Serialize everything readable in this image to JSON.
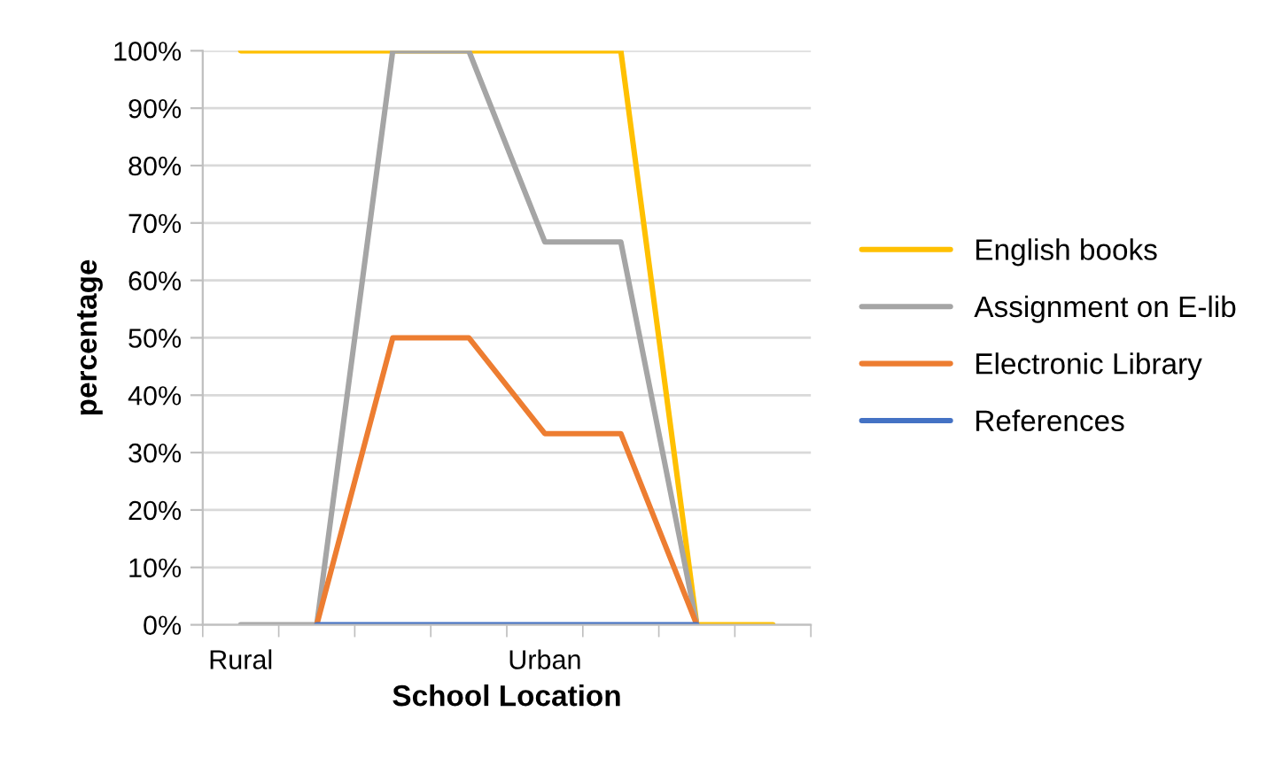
{
  "chart_data": {
    "type": "line",
    "xlabel": "School Location",
    "ylabel": "percentage",
    "categories": [
      "Rural",
      null,
      null,
      null,
      "Urban",
      null,
      null,
      null
    ],
    "series": [
      {
        "name": "English books",
        "color": "#ffc000",
        "values": [
          100,
          100,
          100,
          100,
          100,
          100,
          0,
          0
        ]
      },
      {
        "name": "Assignment on E-lib",
        "color": "#a5a5a5",
        "values": [
          0,
          0,
          100,
          100,
          66.7,
          66.7,
          0,
          null
        ]
      },
      {
        "name": "Electronic Library",
        "color": "#ed7d31",
        "values": [
          null,
          0,
          50,
          50,
          33.3,
          33.3,
          0,
          null
        ]
      },
      {
        "name": "References",
        "color": "#4472c4",
        "values": [
          null,
          0,
          0,
          0,
          0,
          0,
          0,
          null
        ]
      }
    ],
    "ylim": [
      0,
      100
    ],
    "yticks": [
      {
        "value": 0,
        "label": "0%"
      },
      {
        "value": 10,
        "label": "10%"
      },
      {
        "value": 20,
        "label": "20%"
      },
      {
        "value": 30,
        "label": "30%"
      },
      {
        "value": 40,
        "label": "40%"
      },
      {
        "value": 50,
        "label": "50%"
      },
      {
        "value": 60,
        "label": "60%"
      },
      {
        "value": 70,
        "label": "70%"
      },
      {
        "value": 80,
        "label": "80%"
      },
      {
        "value": 90,
        "label": "90%"
      },
      {
        "value": 100,
        "label": "100%"
      }
    ],
    "grid": "y",
    "legend": "right",
    "marker": "none",
    "line_style": "solid"
  }
}
